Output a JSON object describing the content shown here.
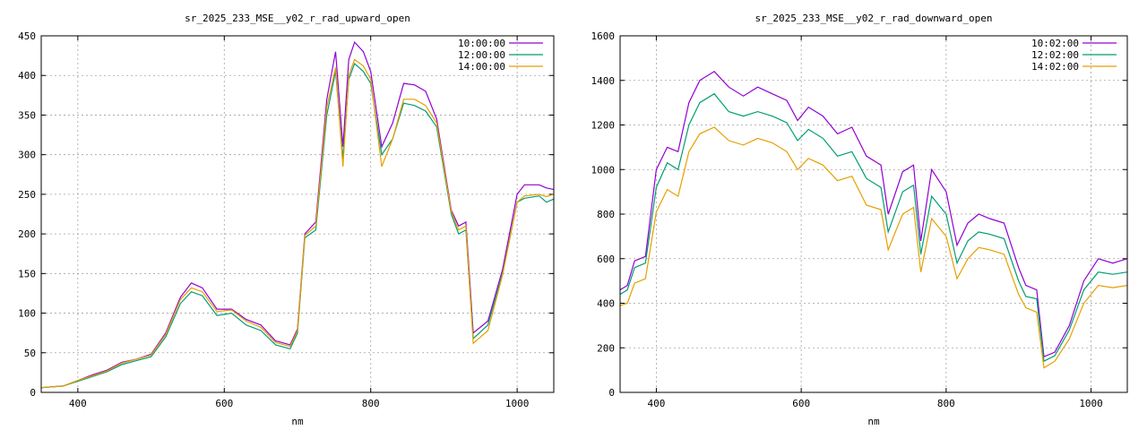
{
  "chart_data": [
    {
      "type": "line",
      "title": "sr_2025_233_MSE__y02_r_rad_upward_open",
      "xlabel": "nm",
      "ylabel": "",
      "xlim": [
        350,
        1050
      ],
      "ylim": [
        0,
        450
      ],
      "xticks": [
        400,
        600,
        800,
        1000
      ],
      "yticks": [
        0,
        50,
        100,
        150,
        200,
        250,
        300,
        350,
        400,
        450
      ],
      "grid": true,
      "legend_position": "top-right",
      "series": [
        {
          "name": "10:00:00",
          "color": "#9400d3",
          "points": [
            [
              350,
              6
            ],
            [
              380,
              8
            ],
            [
              400,
              15
            ],
            [
              420,
              22
            ],
            [
              440,
              28
            ],
            [
              460,
              38
            ],
            [
              480,
              42
            ],
            [
              500,
              48
            ],
            [
              520,
              75
            ],
            [
              540,
              120
            ],
            [
              555,
              138
            ],
            [
              570,
              132
            ],
            [
              590,
              105
            ],
            [
              610,
              105
            ],
            [
              630,
              92
            ],
            [
              650,
              85
            ],
            [
              670,
              65
            ],
            [
              690,
              60
            ],
            [
              700,
              80
            ],
            [
              710,
              200
            ],
            [
              725,
              215
            ],
            [
              740,
              370
            ],
            [
              752,
              430
            ],
            [
              762,
              310
            ],
            [
              770,
              420
            ],
            [
              778,
              442
            ],
            [
              790,
              430
            ],
            [
              800,
              405
            ],
            [
              815,
              310
            ],
            [
              830,
              340
            ],
            [
              845,
              390
            ],
            [
              860,
              388
            ],
            [
              875,
              380
            ],
            [
              890,
              345
            ],
            [
              910,
              230
            ],
            [
              920,
              210
            ],
            [
              930,
              215
            ],
            [
              940,
              75
            ],
            [
              960,
              90
            ],
            [
              980,
              155
            ],
            [
              1000,
              250
            ],
            [
              1010,
              262
            ],
            [
              1030,
              262
            ],
            [
              1040,
              258
            ],
            [
              1050,
              256
            ]
          ]
        },
        {
          "name": "12:00:00",
          "color": "#009e73",
          "points": [
            [
              350,
              6
            ],
            [
              380,
              8
            ],
            [
              400,
              14
            ],
            [
              420,
              20
            ],
            [
              440,
              26
            ],
            [
              460,
              35
            ],
            [
              480,
              40
            ],
            [
              500,
              45
            ],
            [
              520,
              70
            ],
            [
              540,
              112
            ],
            [
              555,
              127
            ],
            [
              570,
              122
            ],
            [
              590,
              97
            ],
            [
              610,
              100
            ],
            [
              630,
              85
            ],
            [
              650,
              78
            ],
            [
              670,
              60
            ],
            [
              690,
              55
            ],
            [
              700,
              75
            ],
            [
              710,
              195
            ],
            [
              725,
              205
            ],
            [
              740,
              350
            ],
            [
              752,
              405
            ],
            [
              762,
              295
            ],
            [
              770,
              395
            ],
            [
              778,
              415
            ],
            [
              790,
              405
            ],
            [
              800,
              390
            ],
            [
              815,
              300
            ],
            [
              830,
              320
            ],
            [
              845,
              365
            ],
            [
              860,
              362
            ],
            [
              875,
              355
            ],
            [
              890,
              335
            ],
            [
              910,
              225
            ],
            [
              920,
              200
            ],
            [
              930,
              205
            ],
            [
              940,
              68
            ],
            [
              960,
              85
            ],
            [
              980,
              150
            ],
            [
              1000,
              240
            ],
            [
              1010,
              245
            ],
            [
              1030,
              248
            ],
            [
              1040,
              240
            ],
            [
              1050,
              244
            ]
          ]
        },
        {
          "name": "14:00:00",
          "color": "#e69f00",
          "points": [
            [
              350,
              6
            ],
            [
              380,
              8
            ],
            [
              400,
              15
            ],
            [
              420,
              21
            ],
            [
              440,
              27
            ],
            [
              460,
              37
            ],
            [
              480,
              42
            ],
            [
              500,
              47
            ],
            [
              520,
              73
            ],
            [
              540,
              117
            ],
            [
              555,
              132
            ],
            [
              570,
              127
            ],
            [
              590,
              102
            ],
            [
              610,
              104
            ],
            [
              630,
              90
            ],
            [
              650,
              82
            ],
            [
              670,
              63
            ],
            [
              690,
              58
            ],
            [
              700,
              78
            ],
            [
              710,
              198
            ],
            [
              725,
              210
            ],
            [
              740,
              360
            ],
            [
              752,
              410
            ],
            [
              762,
              285
            ],
            [
              770,
              400
            ],
            [
              778,
              420
            ],
            [
              790,
              412
            ],
            [
              800,
              395
            ],
            [
              815,
              285
            ],
            [
              830,
              320
            ],
            [
              845,
              370
            ],
            [
              860,
              370
            ],
            [
              875,
              362
            ],
            [
              890,
              340
            ],
            [
              910,
              228
            ],
            [
              920,
              205
            ],
            [
              930,
              210
            ],
            [
              940,
              62
            ],
            [
              960,
              78
            ],
            [
              980,
              148
            ],
            [
              1000,
              240
            ],
            [
              1010,
              248
            ],
            [
              1030,
              250
            ],
            [
              1040,
              247
            ],
            [
              1050,
              250
            ]
          ]
        }
      ]
    },
    {
      "type": "line",
      "title": "sr_2025_233_MSE__y02_r_rad_downward_open",
      "xlabel": "nm",
      "ylabel": "",
      "xlim": [
        350,
        1050
      ],
      "ylim": [
        0,
        1600
      ],
      "xticks": [
        400,
        600,
        800,
        1000
      ],
      "yticks": [
        0,
        200,
        400,
        600,
        800,
        1000,
        1200,
        1400,
        1600
      ],
      "grid": true,
      "legend_position": "top-right",
      "series": [
        {
          "name": "10:02:00",
          "color": "#9400d3",
          "points": [
            [
              350,
              460
            ],
            [
              360,
              480
            ],
            [
              370,
              590
            ],
            [
              385,
              610
            ],
            [
              400,
              1000
            ],
            [
              415,
              1100
            ],
            [
              430,
              1080
            ],
            [
              445,
              1300
            ],
            [
              460,
              1400
            ],
            [
              480,
              1440
            ],
            [
              500,
              1370
            ],
            [
              520,
              1330
            ],
            [
              540,
              1370
            ],
            [
              560,
              1340
            ],
            [
              580,
              1310
            ],
            [
              595,
              1220
            ],
            [
              610,
              1280
            ],
            [
              630,
              1240
            ],
            [
              650,
              1160
            ],
            [
              670,
              1190
            ],
            [
              690,
              1060
            ],
            [
              710,
              1020
            ],
            [
              720,
              800
            ],
            [
              740,
              990
            ],
            [
              755,
              1020
            ],
            [
              765,
              680
            ],
            [
              780,
              1000
            ],
            [
              800,
              900
            ],
            [
              815,
              660
            ],
            [
              830,
              760
            ],
            [
              845,
              800
            ],
            [
              860,
              780
            ],
            [
              880,
              760
            ],
            [
              900,
              560
            ],
            [
              910,
              480
            ],
            [
              925,
              460
            ],
            [
              935,
              160
            ],
            [
              950,
              180
            ],
            [
              970,
              300
            ],
            [
              990,
              500
            ],
            [
              1010,
              600
            ],
            [
              1030,
              580
            ],
            [
              1050,
              600
            ]
          ]
        },
        {
          "name": "12:02:00",
          "color": "#009e73",
          "points": [
            [
              350,
              440
            ],
            [
              360,
              460
            ],
            [
              370,
              560
            ],
            [
              385,
              580
            ],
            [
              400,
              920
            ],
            [
              415,
              1030
            ],
            [
              430,
              1000
            ],
            [
              445,
              1200
            ],
            [
              460,
              1300
            ],
            [
              480,
              1340
            ],
            [
              500,
              1260
            ],
            [
              520,
              1240
            ],
            [
              540,
              1260
            ],
            [
              560,
              1240
            ],
            [
              580,
              1210
            ],
            [
              595,
              1130
            ],
            [
              610,
              1180
            ],
            [
              630,
              1140
            ],
            [
              650,
              1060
            ],
            [
              670,
              1080
            ],
            [
              690,
              960
            ],
            [
              710,
              920
            ],
            [
              720,
              720
            ],
            [
              740,
              900
            ],
            [
              755,
              930
            ],
            [
              765,
              620
            ],
            [
              780,
              880
            ],
            [
              800,
              800
            ],
            [
              815,
              580
            ],
            [
              830,
              680
            ],
            [
              845,
              720
            ],
            [
              860,
              710
            ],
            [
              880,
              690
            ],
            [
              900,
              500
            ],
            [
              910,
              430
            ],
            [
              925,
              420
            ],
            [
              935,
              140
            ],
            [
              950,
              165
            ],
            [
              970,
              280
            ],
            [
              990,
              460
            ],
            [
              1010,
              540
            ],
            [
              1030,
              530
            ],
            [
              1050,
              540
            ]
          ]
        },
        {
          "name": "14:02:00",
          "color": "#e69f00",
          "points": [
            [
              350,
              390
            ],
            [
              360,
              400
            ],
            [
              370,
              490
            ],
            [
              385,
              510
            ],
            [
              400,
              810
            ],
            [
              415,
              910
            ],
            [
              430,
              880
            ],
            [
              445,
              1080
            ],
            [
              460,
              1160
            ],
            [
              480,
              1190
            ],
            [
              500,
              1130
            ],
            [
              520,
              1110
            ],
            [
              540,
              1140
            ],
            [
              560,
              1120
            ],
            [
              580,
              1080
            ],
            [
              595,
              1000
            ],
            [
              610,
              1050
            ],
            [
              630,
              1020
            ],
            [
              650,
              950
            ],
            [
              670,
              970
            ],
            [
              690,
              840
            ],
            [
              710,
              820
            ],
            [
              720,
              640
            ],
            [
              740,
              800
            ],
            [
              755,
              830
            ],
            [
              765,
              540
            ],
            [
              780,
              780
            ],
            [
              800,
              700
            ],
            [
              815,
              510
            ],
            [
              830,
              600
            ],
            [
              845,
              650
            ],
            [
              860,
              640
            ],
            [
              880,
              620
            ],
            [
              900,
              440
            ],
            [
              910,
              380
            ],
            [
              925,
              360
            ],
            [
              935,
              110
            ],
            [
              950,
              140
            ],
            [
              970,
              240
            ],
            [
              990,
              400
            ],
            [
              1010,
              480
            ],
            [
              1030,
              470
            ],
            [
              1050,
              480
            ]
          ]
        }
      ]
    }
  ]
}
